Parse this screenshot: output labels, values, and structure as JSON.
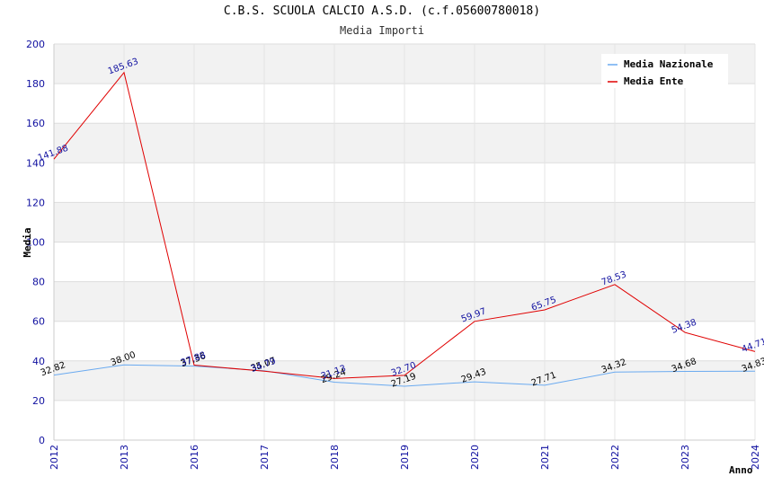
{
  "chart_data": {
    "type": "line",
    "title": "C.B.S. SCUOLA CALCIO A.S.D. (c.f.05600780018)",
    "subtitle": "Media Importi",
    "xlabel": "Anno",
    "ylabel": "Media",
    "categories": [
      "2012",
      "2013",
      "2016",
      "2017",
      "2018",
      "2019",
      "2020",
      "2021",
      "2022",
      "2023",
      "2024"
    ],
    "ylim": [
      0,
      200
    ],
    "yticks": [
      0,
      20,
      40,
      60,
      80,
      100,
      120,
      140,
      160,
      180,
      200
    ],
    "grid": true,
    "legend_position": "top-right",
    "series": [
      {
        "name": "Media Nazionale",
        "color": "#6aaaf0",
        "values": [
          32.82,
          38.0,
          37.36,
          35.07,
          29.24,
          27.19,
          29.43,
          27.71,
          34.32,
          34.68,
          34.83
        ],
        "labels": [
          "32.82",
          "38.00",
          "37.36",
          "35.07",
          "29.24",
          "27.19",
          "29.43",
          "27.71",
          "34.32",
          "34.68",
          "34.83"
        ]
      },
      {
        "name": "Media Ente",
        "color": "#e00000",
        "values": [
          141.88,
          185.63,
          37.88,
          34.79,
          31.13,
          32.7,
          59.97,
          65.75,
          78.53,
          54.38,
          44.71
        ],
        "labels": [
          "141.88",
          "185.63",
          "37.88",
          "34.79",
          "31.13",
          "32.70",
          "59.97",
          "65.75",
          "78.53",
          "54.38",
          "44.71"
        ]
      }
    ]
  }
}
